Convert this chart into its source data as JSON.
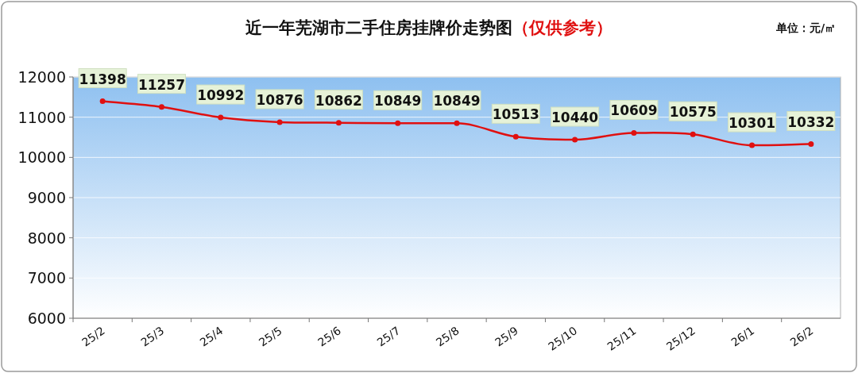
{
  "chart_data": {
    "type": "line",
    "title": "近一年芜湖市二手住房挂牌价走势图",
    "subtitle": "（仅供参考）",
    "annotations": [
      "单位：元/㎡"
    ],
    "categories": [
      "25/2",
      "25/3",
      "25/4",
      "25/5",
      "25/6",
      "25/7",
      "25/8",
      "25/9",
      "25/10",
      "25/11",
      "25/12",
      "26/1",
      "26/2"
    ],
    "series": [
      {
        "color": "#e01010",
        "values": [
          11398,
          11257,
          10992,
          10876,
          10862,
          10849,
          10849,
          10513,
          10440,
          10609,
          10575,
          10301,
          10332
        ]
      }
    ],
    "ylim": [
      6000,
      12000
    ],
    "yticks": [
      6000,
      7000,
      8000,
      9000,
      10000,
      11000,
      12000
    ],
    "grid": "y",
    "marker": "circle",
    "data_labels": true
  }
}
